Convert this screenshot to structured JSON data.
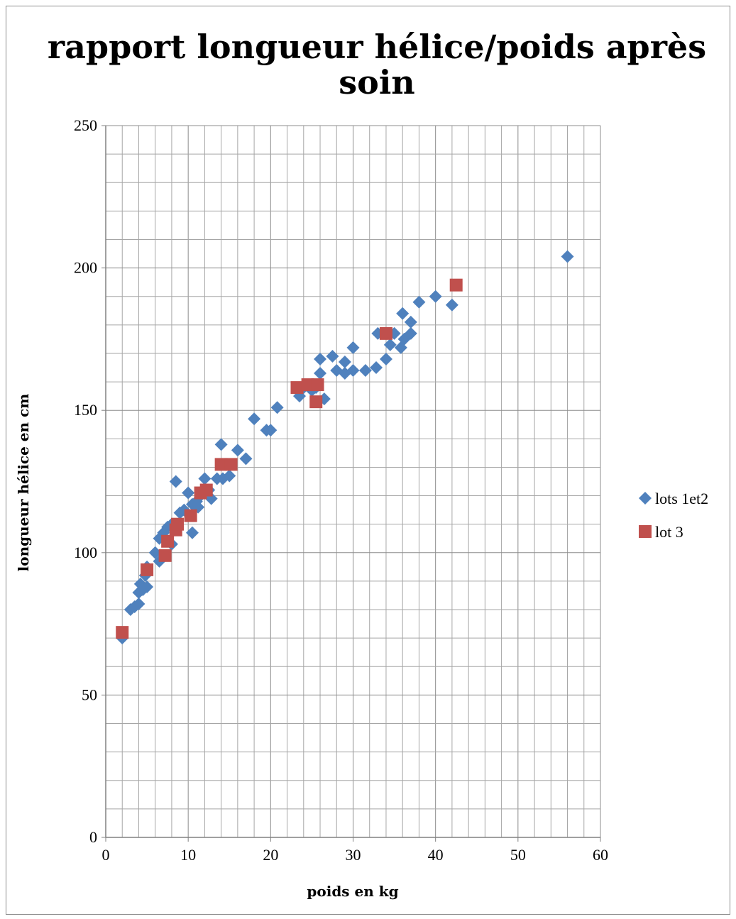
{
  "chart_data": {
    "type": "scatter",
    "title_lines": [
      "rapport longueur hélice/poids après",
      "soin"
    ],
    "xlabel": "poids en kg",
    "ylabel": "longueur hélice en cm",
    "xlim": [
      0,
      60
    ],
    "ylim": [
      0,
      250
    ],
    "x_ticks": [
      0,
      10,
      20,
      30,
      40,
      50,
      60
    ],
    "y_ticks": [
      0,
      50,
      100,
      150,
      200,
      250
    ],
    "x_minor_step": 2,
    "y_minor_step": 10,
    "grid": true,
    "legend_position": "right",
    "series": [
      {
        "name": "lots 1et2",
        "marker": "diamond",
        "color": "#4f81bd",
        "points": [
          [
            2,
            70
          ],
          [
            3,
            80
          ],
          [
            3.5,
            81
          ],
          [
            4,
            82
          ],
          [
            4,
            86
          ],
          [
            4.2,
            89
          ],
          [
            4.5,
            87
          ],
          [
            5,
            88
          ],
          [
            5,
            95
          ],
          [
            4.8,
            92
          ],
          [
            6,
            100
          ],
          [
            6.5,
            97
          ],
          [
            6.5,
            105
          ],
          [
            7,
            107
          ],
          [
            7.5,
            109
          ],
          [
            8,
            103
          ],
          [
            8,
            110
          ],
          [
            8.5,
            125
          ],
          [
            9,
            114
          ],
          [
            9.5,
            115
          ],
          [
            10,
            121
          ],
          [
            10.5,
            107
          ],
          [
            10.5,
            117
          ],
          [
            11,
            118
          ],
          [
            11.2,
            116
          ],
          [
            11.5,
            120
          ],
          [
            12,
            126
          ],
          [
            12.5,
            122
          ],
          [
            12.8,
            119
          ],
          [
            13.5,
            126
          ],
          [
            14,
            138
          ],
          [
            14.2,
            126
          ],
          [
            15,
            127
          ],
          [
            16,
            136
          ],
          [
            17,
            133
          ],
          [
            18,
            147
          ],
          [
            19.5,
            143
          ],
          [
            20,
            143
          ],
          [
            20.8,
            151
          ],
          [
            23.5,
            155
          ],
          [
            24,
            158
          ],
          [
            25,
            157
          ],
          [
            25.5,
            158
          ],
          [
            26,
            163
          ],
          [
            26,
            168
          ],
          [
            26.5,
            154
          ],
          [
            27.5,
            169
          ],
          [
            28,
            164
          ],
          [
            29,
            167
          ],
          [
            29,
            163
          ],
          [
            30,
            164
          ],
          [
            30,
            172
          ],
          [
            31.5,
            164
          ],
          [
            32.8,
            165
          ],
          [
            33,
            177
          ],
          [
            34,
            168
          ],
          [
            34.5,
            173
          ],
          [
            35,
            177
          ],
          [
            35.8,
            172
          ],
          [
            36,
            184
          ],
          [
            36.2,
            175
          ],
          [
            37,
            181
          ],
          [
            37,
            177
          ],
          [
            38,
            188
          ],
          [
            40,
            190
          ],
          [
            42,
            187
          ],
          [
            56,
            204
          ]
        ]
      },
      {
        "name": "lot 3",
        "marker": "square",
        "color": "#c0504d",
        "points": [
          [
            2,
            72
          ],
          [
            5,
            94
          ],
          [
            7.2,
            99
          ],
          [
            7.5,
            104
          ],
          [
            8.5,
            108
          ],
          [
            8.7,
            110
          ],
          [
            10.3,
            113
          ],
          [
            11.5,
            121
          ],
          [
            12.2,
            122
          ],
          [
            14,
            131
          ],
          [
            15.2,
            131
          ],
          [
            23.2,
            158
          ],
          [
            24.5,
            159
          ],
          [
            25.7,
            159
          ],
          [
            25.5,
            153
          ],
          [
            34,
            177
          ],
          [
            42.5,
            194
          ]
        ]
      }
    ]
  }
}
